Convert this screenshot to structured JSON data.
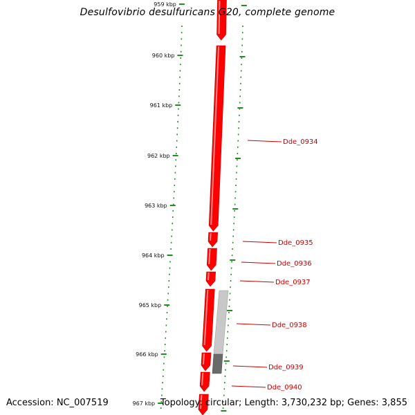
{
  "title": "Desulfovibrio desulfuricans G20, complete genome",
  "footer": {
    "accession": "Accession: NC_007519",
    "topology": "Topology: circular; Length: 3,730,232 bp; Genes: 3,855"
  },
  "colors": {
    "gene": "#ff0000",
    "backbone": "#7a7a7a",
    "tick": "#228b22",
    "label": "#cc0000",
    "secondary_light": "#c8c8c8",
    "secondary_dark": "#6a6a6a"
  },
  "ruler": {
    "unit": "kbp",
    "ticks": [
      "959 kbp",
      "960 kbp",
      "961 kbp",
      "962 kbp",
      "963 kbp",
      "964 kbp",
      "965 kbp",
      "966 kbp",
      "967 kbp"
    ]
  },
  "genes": [
    "Dde_0934",
    "Dde_0935",
    "Dde_0936",
    "Dde_0937",
    "Dde_0938",
    "Dde_0939",
    "Dde_0940"
  ]
}
